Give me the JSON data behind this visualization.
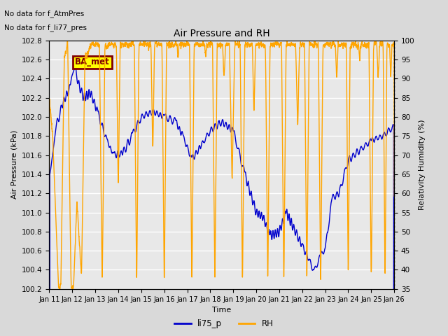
{
  "title": "Air Pressure and RH",
  "xlabel": "Time",
  "ylabel_left": "Air Pressure (kPa)",
  "ylabel_right": "Relativity Humidity (%)",
  "annotation_line1": "No data for f_AtmPres",
  "annotation_line2": "No data for f_li77_pres",
  "box_label": "BA_met",
  "legend_labels": [
    "li75_p",
    "RH"
  ],
  "legend_colors": [
    "#0000cc",
    "#ffa500"
  ],
  "line_color_pressure": "#0000cc",
  "line_color_rh": "#ffa500",
  "ylim_left": [
    100.2,
    102.8
  ],
  "ylim_right": [
    35,
    100
  ],
  "yticks_left": [
    100.2,
    100.4,
    100.6,
    100.8,
    101.0,
    101.2,
    101.4,
    101.6,
    101.8,
    102.0,
    102.2,
    102.4,
    102.6,
    102.8
  ],
  "yticks_right": [
    35,
    40,
    45,
    50,
    55,
    60,
    65,
    70,
    75,
    80,
    85,
    90,
    95,
    100
  ],
  "xtick_labels": [
    "Jan 11",
    "Jan 12",
    "Jan 13",
    "Jan 14",
    "Jan 15",
    "Jan 16",
    "Jan 17",
    "Jan 18",
    "Jan 19",
    "Jan 20",
    "Jan 21",
    "Jan 22",
    "Jan 23",
    "Jan 24",
    "Jan 25",
    "Jan 26"
  ],
  "background_color": "#d9d9d9",
  "plot_bg_color": "#e8e8e8",
  "grid_color": "#ffffff",
  "box_facecolor": "#ffff00",
  "box_edgecolor": "#800000",
  "box_textcolor": "#800000",
  "dpi": 100,
  "figsize": [
    6.4,
    4.8
  ]
}
